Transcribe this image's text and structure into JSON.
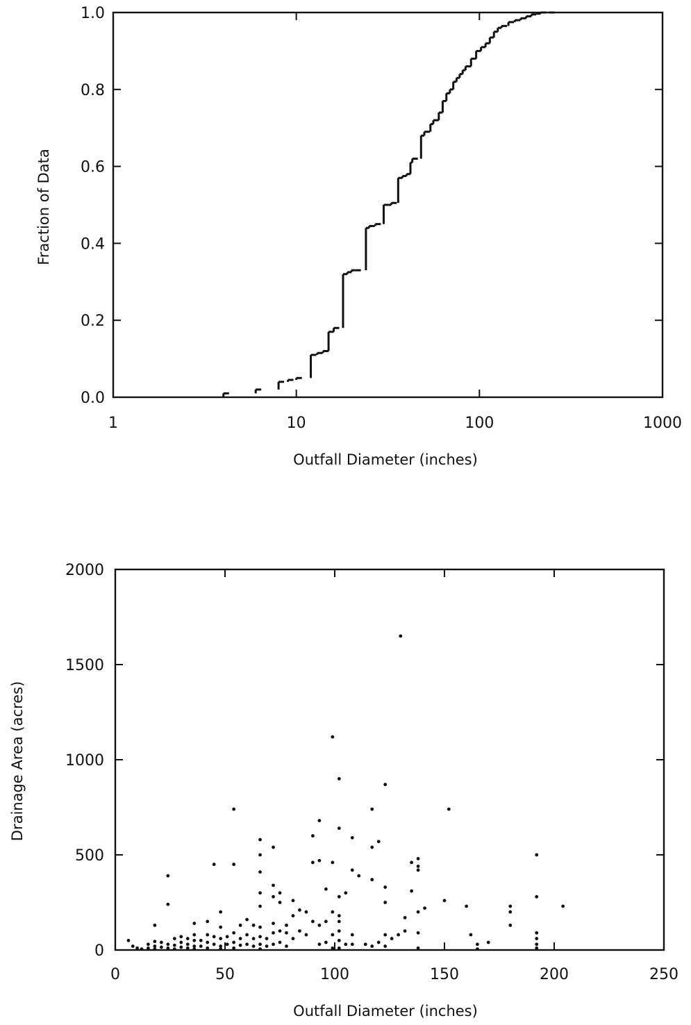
{
  "chart_data": [
    {
      "type": "line",
      "subtype": "empirical-cdf-step",
      "xlabel": "Outfall Diameter (inches)",
      "ylabel": "Fraction of Data",
      "xscale": "log",
      "xlim": [
        1,
        1000
      ],
      "ylim": [
        0,
        1
      ],
      "xticks": [
        1,
        10,
        100,
        1000
      ],
      "xtick_labels": [
        "1",
        "10",
        "100",
        "1000"
      ],
      "yticks": [
        0,
        0.2,
        0.4,
        0.6,
        0.8,
        1.0
      ],
      "ytick_labels": [
        "0.0",
        "0.2",
        "0.4",
        "0.6",
        "0.8",
        "1.0"
      ],
      "grid": false,
      "series": [
        {
          "points": [
            [
              4,
              0.01
            ],
            [
              6,
              0.02
            ],
            [
              8,
              0.04
            ],
            [
              9,
              0.045
            ],
            [
              10,
              0.05
            ],
            [
              12,
              0.11
            ],
            [
              13,
              0.115
            ],
            [
              14,
              0.12
            ],
            [
              15,
              0.17
            ],
            [
              16,
              0.18
            ],
            [
              18,
              0.32
            ],
            [
              19,
              0.325
            ],
            [
              20,
              0.33
            ],
            [
              21,
              0.33
            ],
            [
              24,
              0.44
            ],
            [
              25,
              0.445
            ],
            [
              27,
              0.45
            ],
            [
              30,
              0.5
            ],
            [
              32,
              0.5
            ],
            [
              33,
              0.505
            ],
            [
              36,
              0.57
            ],
            [
              38,
              0.575
            ],
            [
              40,
              0.58
            ],
            [
              42,
              0.61
            ],
            [
              43,
              0.62
            ],
            [
              48,
              0.68
            ],
            [
              50,
              0.69
            ],
            [
              54,
              0.71
            ],
            [
              56,
              0.72
            ],
            [
              60,
              0.74
            ],
            [
              63,
              0.77
            ],
            [
              66,
              0.79
            ],
            [
              69,
              0.8
            ],
            [
              72,
              0.82
            ],
            [
              75,
              0.83
            ],
            [
              78,
              0.84
            ],
            [
              81,
              0.85
            ],
            [
              84,
              0.86
            ],
            [
              90,
              0.88
            ],
            [
              96,
              0.9
            ],
            [
              102,
              0.91
            ],
            [
              108,
              0.92
            ],
            [
              114,
              0.935
            ],
            [
              120,
              0.95
            ],
            [
              126,
              0.96
            ],
            [
              132,
              0.965
            ],
            [
              144,
              0.975
            ],
            [
              156,
              0.98
            ],
            [
              168,
              0.985
            ],
            [
              180,
              0.99
            ],
            [
              192,
              0.995
            ],
            [
              204,
              0.997
            ],
            [
              216,
              1.0
            ],
            [
              240,
              1.0
            ]
          ]
        }
      ]
    },
    {
      "type": "scatter",
      "xlabel": "Outfall Diameter (inches)",
      "ylabel": "Drainage Area (acres)",
      "xlim": [
        0,
        250
      ],
      "ylim": [
        0,
        2000
      ],
      "xticks": [
        0,
        50,
        100,
        150,
        200,
        250
      ],
      "xtick_labels": [
        "0",
        "50",
        "100",
        "150",
        "200",
        "250"
      ],
      "yticks": [
        0,
        500,
        1000,
        1500,
        2000
      ],
      "ytick_labels": [
        "0",
        "500",
        "1000",
        "1500",
        "2000"
      ],
      "grid": false,
      "series": [
        {
          "points": [
            [
              6,
              50
            ],
            [
              8,
              20
            ],
            [
              10,
              10
            ],
            [
              12,
              5
            ],
            [
              15,
              10
            ],
            [
              15,
              30
            ],
            [
              18,
              130
            ],
            [
              18,
              45
            ],
            [
              18,
              20
            ],
            [
              18,
              5
            ],
            [
              21,
              40
            ],
            [
              21,
              15
            ],
            [
              24,
              390
            ],
            [
              24,
              240
            ],
            [
              24,
              30
            ],
            [
              24,
              10
            ],
            [
              27,
              60
            ],
            [
              27,
              25
            ],
            [
              27,
              5
            ],
            [
              30,
              70
            ],
            [
              30,
              40
            ],
            [
              30,
              15
            ],
            [
              33,
              60
            ],
            [
              33,
              30
            ],
            [
              33,
              10
            ],
            [
              36,
              140
            ],
            [
              36,
              80
            ],
            [
              36,
              50
            ],
            [
              36,
              20
            ],
            [
              36,
              5
            ],
            [
              39,
              50
            ],
            [
              39,
              20
            ],
            [
              42,
              150
            ],
            [
              42,
              80
            ],
            [
              42,
              40
            ],
            [
              42,
              10
            ],
            [
              45,
              450
            ],
            [
              45,
              70
            ],
            [
              45,
              30
            ],
            [
              48,
              200
            ],
            [
              48,
              120
            ],
            [
              48,
              60
            ],
            [
              48,
              20
            ],
            [
              48,
              5
            ],
            [
              51,
              70
            ],
            [
              51,
              30
            ],
            [
              54,
              740
            ],
            [
              54,
              450
            ],
            [
              54,
              90
            ],
            [
              54,
              40
            ],
            [
              54,
              10
            ],
            [
              57,
              130
            ],
            [
              57,
              60
            ],
            [
              57,
              25
            ],
            [
              60,
              160
            ],
            [
              60,
              80
            ],
            [
              60,
              30
            ],
            [
              63,
              130
            ],
            [
              63,
              60
            ],
            [
              63,
              20
            ],
            [
              66,
              580
            ],
            [
              66,
              500
            ],
            [
              66,
              410
            ],
            [
              66,
              300
            ],
            [
              66,
              230
            ],
            [
              66,
              120
            ],
            [
              66,
              70
            ],
            [
              66,
              30
            ],
            [
              66,
              5
            ],
            [
              69,
              60
            ],
            [
              69,
              20
            ],
            [
              72,
              540
            ],
            [
              72,
              340
            ],
            [
              72,
              280
            ],
            [
              72,
              140
            ],
            [
              72,
              90
            ],
            [
              72,
              30
            ],
            [
              75,
              300
            ],
            [
              75,
              250
            ],
            [
              75,
              100
            ],
            [
              75,
              40
            ],
            [
              78,
              130
            ],
            [
              78,
              90
            ],
            [
              78,
              20
            ],
            [
              81,
              260
            ],
            [
              81,
              180
            ],
            [
              81,
              60
            ],
            [
              84,
              210
            ],
            [
              84,
              100
            ],
            [
              87,
              200
            ],
            [
              87,
              80
            ],
            [
              90,
              600
            ],
            [
              90,
              460
            ],
            [
              90,
              150
            ],
            [
              93,
              680
            ],
            [
              93,
              470
            ],
            [
              93,
              130
            ],
            [
              93,
              30
            ],
            [
              96,
              320
            ],
            [
              96,
              150
            ],
            [
              96,
              40
            ],
            [
              99,
              1120
            ],
            [
              99,
              460
            ],
            [
              99,
              200
            ],
            [
              99,
              80
            ],
            [
              99,
              10
            ],
            [
              102,
              900
            ],
            [
              102,
              640
            ],
            [
              102,
              280
            ],
            [
              102,
              180
            ],
            [
              102,
              150
            ],
            [
              102,
              100
            ],
            [
              102,
              50
            ],
            [
              102,
              10
            ],
            [
              105,
              300
            ],
            [
              105,
              30
            ],
            [
              108,
              590
            ],
            [
              108,
              420
            ],
            [
              108,
              80
            ],
            [
              108,
              30
            ],
            [
              111,
              390
            ],
            [
              114,
              30
            ],
            [
              117,
              740
            ],
            [
              117,
              540
            ],
            [
              117,
              370
            ],
            [
              117,
              20
            ],
            [
              120,
              570
            ],
            [
              120,
              40
            ],
            [
              123,
              870
            ],
            [
              123,
              330
            ],
            [
              123,
              250
            ],
            [
              123,
              80
            ],
            [
              123,
              20
            ],
            [
              126,
              60
            ],
            [
              129,
              80
            ],
            [
              130,
              1650
            ],
            [
              132,
              170
            ],
            [
              132,
              100
            ],
            [
              135,
              460
            ],
            [
              135,
              310
            ],
            [
              138,
              480
            ],
            [
              138,
              440
            ],
            [
              138,
              420
            ],
            [
              138,
              200
            ],
            [
              138,
              90
            ],
            [
              138,
              10
            ],
            [
              141,
              220
            ],
            [
              150,
              260
            ],
            [
              152,
              740
            ],
            [
              160,
              230
            ],
            [
              162,
              80
            ],
            [
              165,
              30
            ],
            [
              165,
              5
            ],
            [
              170,
              40
            ],
            [
              180,
              230
            ],
            [
              180,
              200
            ],
            [
              180,
              130
            ],
            [
              192,
              500
            ],
            [
              192,
              280
            ],
            [
              192,
              90
            ],
            [
              192,
              60
            ],
            [
              192,
              30
            ],
            [
              192,
              10
            ],
            [
              204,
              230
            ]
          ]
        }
      ]
    }
  ]
}
